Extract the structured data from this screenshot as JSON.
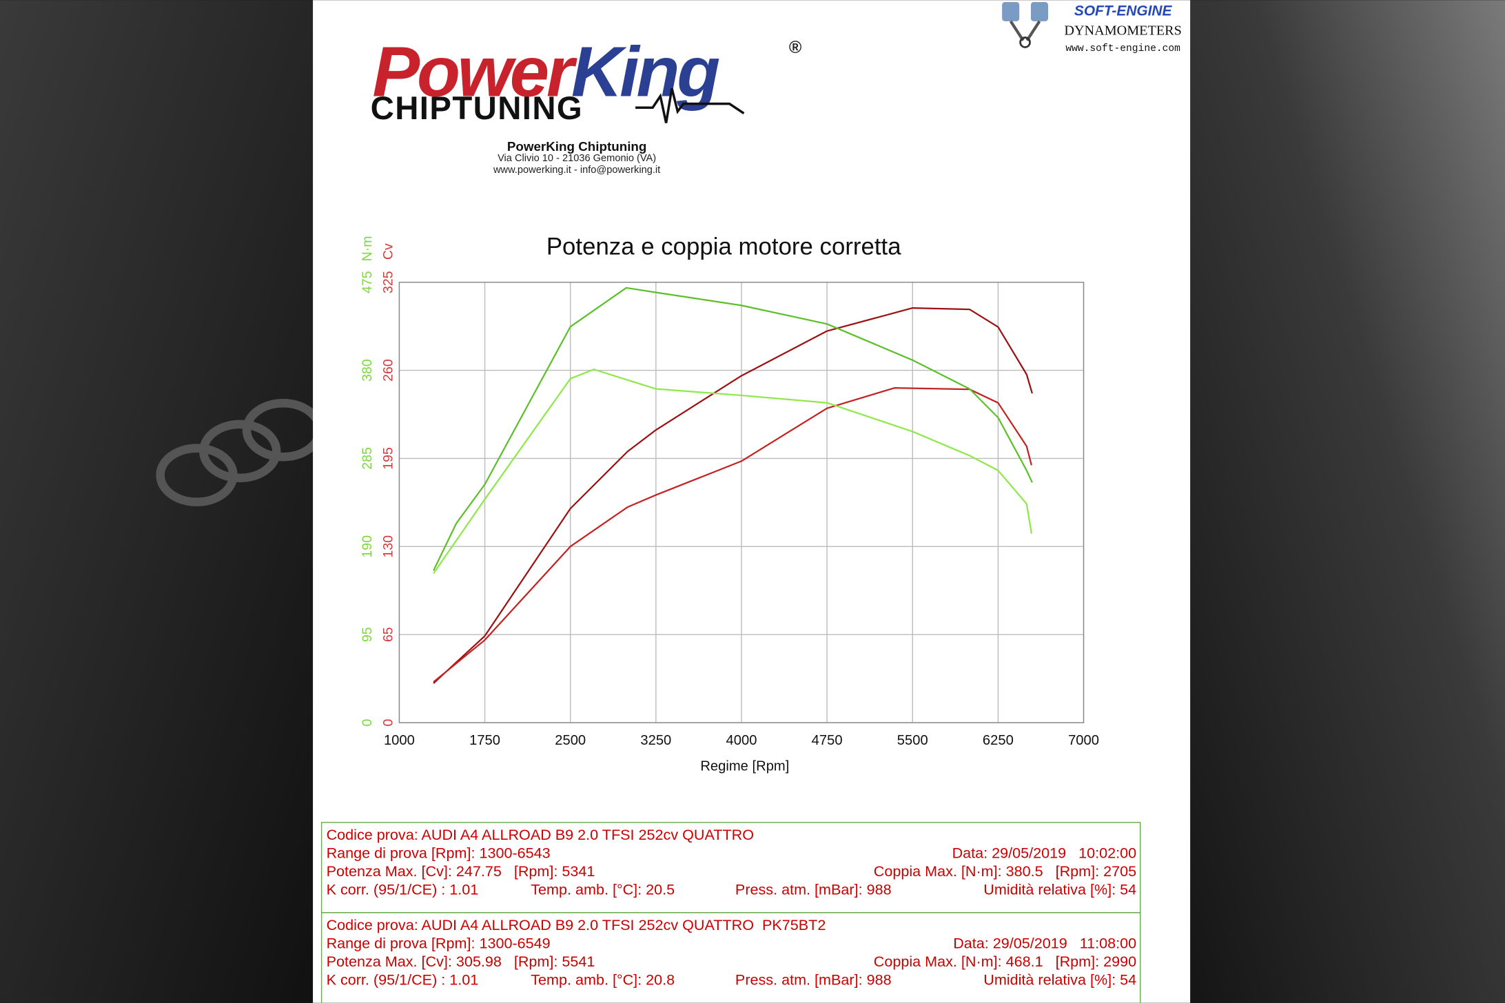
{
  "header": {
    "logo_power": "Power",
    "logo_king": "King",
    "registered": "®",
    "logo_sub": "CHIPTUNING",
    "company": "PowerKing Chiptuning",
    "address": "Via Clivio 10 - 21036 Gemonio (VA)",
    "contacts": "www.powerking.it - info@powerking.it"
  },
  "dyno_brand": {
    "name": "SOFT-ENGINE",
    "subtitle": "DYNAMOMETERS",
    "url": "www.soft-engine.com"
  },
  "chart_data": {
    "type": "line",
    "title": "Potenza e coppia motore corretta",
    "xlabel": "Regime [Rpm]",
    "ylabel": "Cv",
    "y2label": "N·m",
    "xlim": [
      1000,
      7000
    ],
    "xticks": [
      1000,
      1750,
      2500,
      3250,
      4000,
      4750,
      5500,
      6250,
      7000
    ],
    "ylim": [
      0,
      325
    ],
    "yticks": [
      0,
      65,
      130,
      195,
      260,
      325
    ],
    "y2lim": [
      0,
      475
    ],
    "y2ticks": [
      0,
      95,
      190,
      285,
      380,
      475
    ],
    "grid": true,
    "series": [
      {
        "color": "#9b1010",
        "x": [
          1300,
          1750,
          2500,
          3000,
          3250,
          4000,
          4750,
          5500,
          6000,
          6250,
          6500,
          6549
        ],
        "values": [
          29,
          64,
          158,
          200,
          216,
          256,
          289,
          306,
          305,
          292,
          257,
          243
        ]
      },
      {
        "color": "#c42222",
        "x": [
          1300,
          1750,
          2500,
          3000,
          3250,
          4000,
          4750,
          5341,
          6000,
          6250,
          6500,
          6543
        ],
        "values": [
          30,
          61,
          130,
          159,
          168,
          193,
          232,
          247,
          246,
          236,
          204,
          190
        ]
      },
      {
        "color": "#5cbf2a",
        "axis": "y2",
        "x": [
          1300,
          1500,
          1750,
          2500,
          2990,
          3250,
          4000,
          4750,
          5500,
          6000,
          6250,
          6500,
          6549
        ],
        "values": [
          164,
          215,
          257,
          427,
          469,
          464,
          450,
          430,
          391,
          360,
          329,
          272,
          259
        ]
      },
      {
        "color": "#8ee84a",
        "axis": "y2",
        "x": [
          1300,
          1750,
          2500,
          2705,
          3250,
          4000,
          4750,
          5500,
          6000,
          6250,
          6500,
          6543
        ],
        "values": [
          161,
          241,
          371,
          381,
          360,
          353,
          345,
          314,
          288,
          272,
          236,
          204
        ]
      }
    ]
  },
  "tests": [
    {
      "title": "Codice prova: AUDI A4 ALLROAD B9 2.0 TFSI 252cv QUATTRO",
      "range": "Range di prova [Rpm]: 1300-6543",
      "date": "Data: 29/05/2019   10:02:00",
      "power": "Potenza Max. [Cv]: 247.75   [Rpm]: 5341",
      "torque": "Coppia Max. [N·m]: 380.5   [Rpm]: 2705",
      "k_corr": "K corr. (95/1/CE) : 1.01",
      "temp": "Temp. amb. [°C]: 20.5",
      "pressure": "Press. atm. [mBar]: 988",
      "humidity": "Umidità relativa [%]: 54"
    },
    {
      "title": "Codice prova: AUDI A4 ALLROAD B9 2.0 TFSI 252cv QUATTRO  PK75BT2",
      "range": "Range di prova [Rpm]: 1300-6549",
      "date": "Data: 29/05/2019   11:08:00",
      "power": "Potenza Max. [Cv]: 305.98   [Rpm]: 5541",
      "torque": "Coppia Max. [N·m]: 468.1   [Rpm]: 2990",
      "k_corr": "K corr. (95/1/CE) : 1.01",
      "temp": "Temp. amb. [°C]: 20.8",
      "pressure": "Press. atm. [mBar]: 988",
      "humidity": "Umidità relativa [%]: 54"
    }
  ]
}
